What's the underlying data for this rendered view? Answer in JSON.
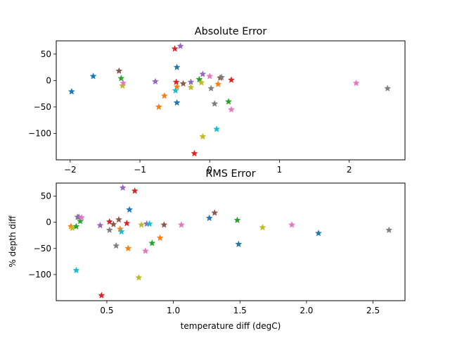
{
  "chart_data": [
    {
      "type": "scatter",
      "title": "Absolute Error",
      "xlabel": "",
      "ylabel": "",
      "xlim": [
        -2.2,
        2.8
      ],
      "ylim": [
        -150,
        75
      ],
      "xticks": [
        -2,
        -1,
        0,
        1,
        2
      ],
      "xtick_labels": [
        "−2",
        "−1",
        "0",
        "1",
        "2"
      ],
      "yticks": [
        -100,
        -50,
        0,
        50
      ],
      "ytick_labels": [
        "−100",
        "−50",
        "0",
        "50"
      ],
      "grid": false,
      "marker": "star",
      "points": [
        {
          "x": -1.98,
          "y": -21,
          "color": "#1f77b4"
        },
        {
          "x": -1.67,
          "y": 8,
          "color": "#1f77b4"
        },
        {
          "x": -1.3,
          "y": 18,
          "color": "#8c564b"
        },
        {
          "x": -1.27,
          "y": 4,
          "color": "#2ca02c"
        },
        {
          "x": -1.25,
          "y": -10,
          "color": "#bcbd22"
        },
        {
          "x": -1.24,
          "y": -5,
          "color": "#e377c2"
        },
        {
          "x": -0.78,
          "y": -2,
          "color": "#9467bd"
        },
        {
          "x": -0.73,
          "y": -50,
          "color": "#ff7f0e"
        },
        {
          "x": -0.65,
          "y": -29,
          "color": "#ff7f0e"
        },
        {
          "x": -0.5,
          "y": 60,
          "color": "#d62728"
        },
        {
          "x": -0.42,
          "y": 65,
          "color": "#9467bd"
        },
        {
          "x": -0.47,
          "y": 25,
          "color": "#1f77b4"
        },
        {
          "x": -0.48,
          "y": -3,
          "color": "#d62728"
        },
        {
          "x": -0.47,
          "y": -12,
          "color": "#ff7f0e"
        },
        {
          "x": -0.49,
          "y": -19,
          "color": "#17becf"
        },
        {
          "x": -0.47,
          "y": -42,
          "color": "#1f77b4"
        },
        {
          "x": -0.38,
          "y": -6,
          "color": "#8c564b"
        },
        {
          "x": -0.27,
          "y": -3,
          "color": "#9467bd"
        },
        {
          "x": -0.27,
          "y": -13,
          "color": "#bcbd22"
        },
        {
          "x": -0.22,
          "y": -138,
          "color": "#d62728"
        },
        {
          "x": -0.15,
          "y": 2,
          "color": "#2ca02c"
        },
        {
          "x": -0.12,
          "y": -4,
          "color": "#bcbd22"
        },
        {
          "x": -0.1,
          "y": 12,
          "color": "#9467bd"
        },
        {
          "x": -0.1,
          "y": -106,
          "color": "#bcbd22"
        },
        {
          "x": 0.0,
          "y": 8,
          "color": "#e377c2"
        },
        {
          "x": 0.02,
          "y": -15,
          "color": "#7f7f7f"
        },
        {
          "x": 0.07,
          "y": -44,
          "color": "#7f7f7f"
        },
        {
          "x": 0.1,
          "y": -92,
          "color": "#17becf"
        },
        {
          "x": 0.12,
          "y": -7,
          "color": "#ff7f0e"
        },
        {
          "x": 0.15,
          "y": 5,
          "color": "#8c564b"
        },
        {
          "x": 0.17,
          "y": 6,
          "color": "#7f7f7f"
        },
        {
          "x": 0.27,
          "y": -40,
          "color": "#2ca02c"
        },
        {
          "x": 0.31,
          "y": 1,
          "color": "#d62728"
        },
        {
          "x": 0.31,
          "y": -55,
          "color": "#e377c2"
        },
        {
          "x": 2.1,
          "y": -5,
          "color": "#e377c2"
        },
        {
          "x": 2.55,
          "y": -15,
          "color": "#7f7f7f"
        }
      ]
    },
    {
      "type": "scatter",
      "title": "RMS Error",
      "xlabel": "temperature diff (degC)",
      "ylabel": "% depth diff",
      "xlim": [
        0.12,
        2.74
      ],
      "ylim": [
        -150,
        75
      ],
      "xticks": [
        0.5,
        1.0,
        1.5,
        2.0,
        2.5
      ],
      "xtick_labels": [
        "0.5",
        "1.0",
        "1.5",
        "2.0",
        "2.5"
      ],
      "yticks": [
        -100,
        -50,
        0,
        50
      ],
      "ytick_labels": [
        "−100",
        "−50",
        "0",
        "50"
      ],
      "grid": false,
      "marker": "star",
      "points": [
        {
          "x": 0.23,
          "y": -8,
          "color": "#ff7f0e"
        },
        {
          "x": 0.24,
          "y": -11,
          "color": "#bcbd22"
        },
        {
          "x": 0.27,
          "y": -92,
          "color": "#17becf"
        },
        {
          "x": 0.27,
          "y": -8,
          "color": "#2ca02c"
        },
        {
          "x": 0.28,
          "y": 10,
          "color": "#7f7f7f"
        },
        {
          "x": 0.29,
          "y": 10,
          "color": "#9467bd"
        },
        {
          "x": 0.3,
          "y": 2,
          "color": "#2ca02c"
        },
        {
          "x": 0.31,
          "y": 9,
          "color": "#e377c2"
        },
        {
          "x": 0.45,
          "y": -6,
          "color": "#9467bd"
        },
        {
          "x": 0.46,
          "y": -140,
          "color": "#d62728"
        },
        {
          "x": 0.52,
          "y": 1,
          "color": "#d62728"
        },
        {
          "x": 0.52,
          "y": -15,
          "color": "#7f7f7f"
        },
        {
          "x": 0.55,
          "y": -4,
          "color": "#8c564b"
        },
        {
          "x": 0.57,
          "y": -45,
          "color": "#7f7f7f"
        },
        {
          "x": 0.59,
          "y": 5,
          "color": "#8c564b"
        },
        {
          "x": 0.6,
          "y": -13,
          "color": "#ff7f0e"
        },
        {
          "x": 0.61,
          "y": -18,
          "color": "#17becf"
        },
        {
          "x": 0.62,
          "y": 66,
          "color": "#9467bd"
        },
        {
          "x": 0.65,
          "y": -2,
          "color": "#d62728"
        },
        {
          "x": 0.66,
          "y": -50,
          "color": "#ff7f0e"
        },
        {
          "x": 0.67,
          "y": 24,
          "color": "#1f77b4"
        },
        {
          "x": 0.71,
          "y": 60,
          "color": "#d62728"
        },
        {
          "x": 0.74,
          "y": -106,
          "color": "#bcbd22"
        },
        {
          "x": 0.76,
          "y": -5,
          "color": "#bcbd22"
        },
        {
          "x": 0.79,
          "y": -55,
          "color": "#e377c2"
        },
        {
          "x": 0.8,
          "y": -3,
          "color": "#9467bd"
        },
        {
          "x": 0.82,
          "y": -3,
          "color": "#17becf"
        },
        {
          "x": 0.84,
          "y": -40,
          "color": "#2ca02c"
        },
        {
          "x": 0.9,
          "y": -30,
          "color": "#ff7f0e"
        },
        {
          "x": 0.93,
          "y": -5,
          "color": "#8c564b"
        },
        {
          "x": 1.06,
          "y": -5,
          "color": "#e377c2"
        },
        {
          "x": 1.27,
          "y": 8,
          "color": "#1f77b4"
        },
        {
          "x": 1.31,
          "y": 18,
          "color": "#8c564b"
        },
        {
          "x": 1.48,
          "y": 4,
          "color": "#2ca02c"
        },
        {
          "x": 1.49,
          "y": -42,
          "color": "#1f77b4"
        },
        {
          "x": 1.67,
          "y": -10,
          "color": "#bcbd22"
        },
        {
          "x": 1.89,
          "y": -5,
          "color": "#e377c2"
        },
        {
          "x": 2.09,
          "y": -21,
          "color": "#1f77b4"
        },
        {
          "x": 2.62,
          "y": -15,
          "color": "#7f7f7f"
        }
      ]
    }
  ]
}
